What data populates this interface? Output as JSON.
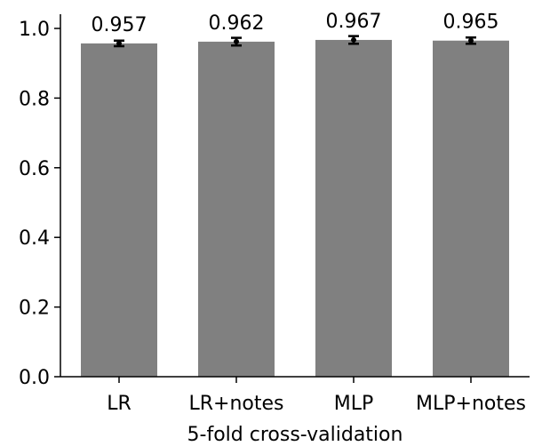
{
  "chart_data": {
    "type": "bar",
    "categories": [
      "LR",
      "LR+notes",
      "MLP",
      "MLP+notes"
    ],
    "values": [
      0.957,
      0.962,
      0.967,
      0.965
    ],
    "value_labels": [
      "0.957",
      "0.962",
      "0.967",
      "0.965"
    ],
    "error": [
      0.008,
      0.011,
      0.011,
      0.009
    ],
    "xlabel": "5-fold cross-validation",
    "ylabel": "",
    "ylim": [
      0,
      1.0
    ],
    "yticks": [
      0.0,
      0.2,
      0.4,
      0.6,
      0.8,
      1.0
    ],
    "ytick_labels": [
      "0.0",
      "0.2",
      "0.4",
      "0.6",
      "0.8",
      "1.0"
    ],
    "grid": false,
    "legend": null,
    "colors": {
      "bar": "#808080",
      "error_bar": "#000000",
      "axis": "#000000"
    }
  }
}
